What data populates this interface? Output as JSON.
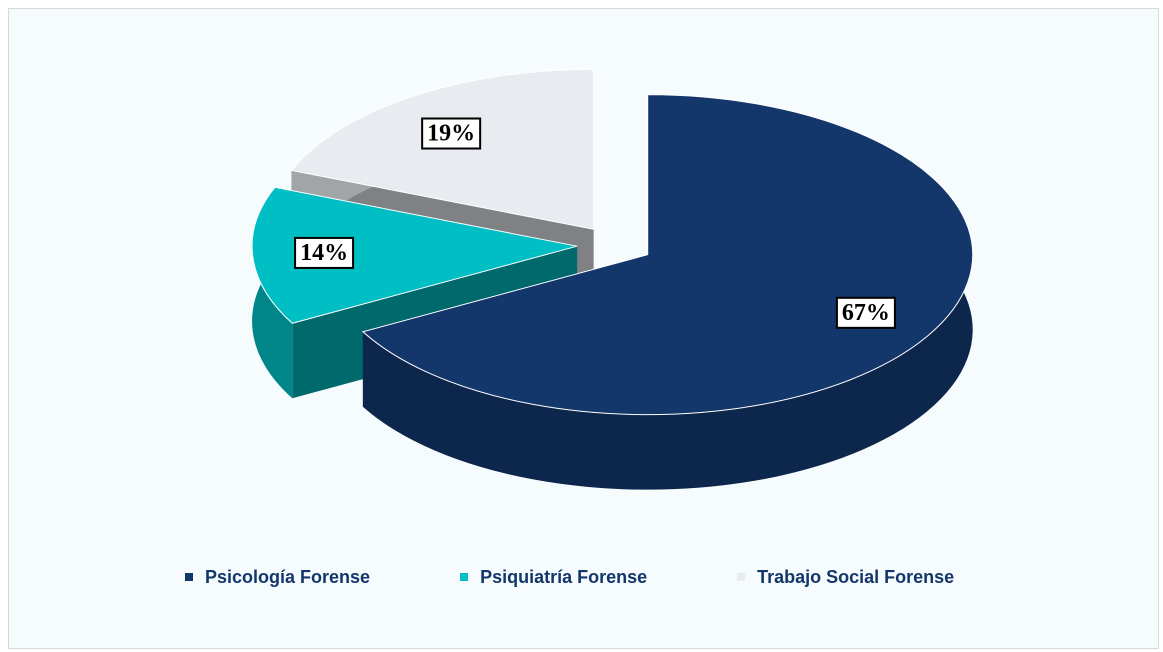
{
  "chart_data": {
    "type": "pie",
    "categories": [
      "Psicología Forense",
      "Psiquiatría Forense",
      "Trabajo Social Forense"
    ],
    "values": [
      67,
      14,
      19
    ],
    "value_labels": [
      "67%",
      "14%",
      "19%"
    ],
    "colors": [
      "#13366b",
      "#00bfc4",
      "#e8ebf0"
    ],
    "legend": "bottom"
  }
}
